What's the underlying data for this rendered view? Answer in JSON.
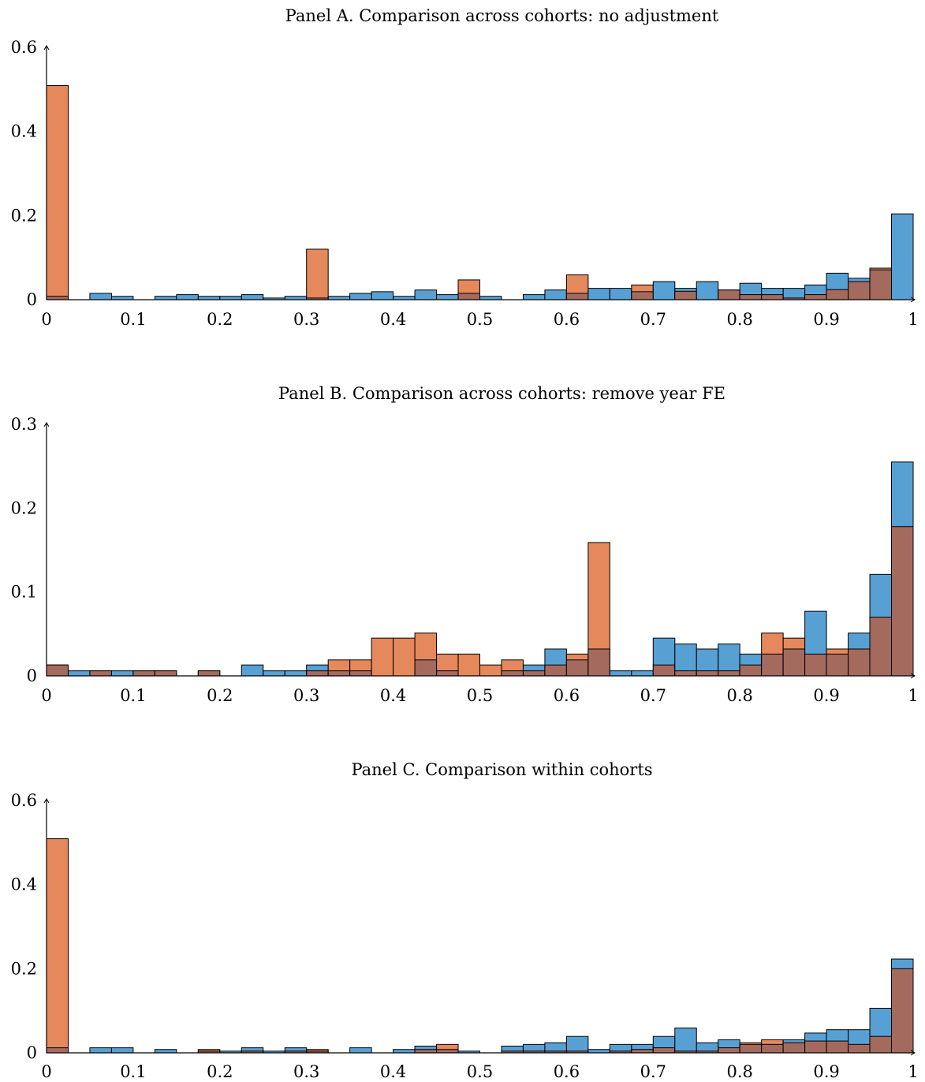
{
  "chart_data": [
    {
      "type": "bar",
      "title": "Panel A. Comparison across cohorts: no adjustment",
      "xlim": [
        0,
        1
      ],
      "ylim": [
        0,
        0.6
      ],
      "x_ticks": [
        "0",
        "0.1",
        "0.2",
        "0.3",
        "0.4",
        "0.5",
        "0.6",
        "0.7",
        "0.8",
        "0.9",
        "1"
      ],
      "y_ticks": [
        "0",
        "0.2",
        "0.4",
        "0.6"
      ],
      "bin_width": 0.025,
      "series": [
        {
          "color": "#E0733E",
          "values": [
            0.509,
            0,
            0,
            0,
            0,
            0,
            0,
            0,
            0,
            0,
            0,
            0,
            0.12,
            0,
            0,
            0,
            0,
            0,
            0,
            0.047,
            0,
            0,
            0,
            0,
            0.059,
            0,
            0,
            0.035,
            0,
            0.02,
            0,
            0.023,
            0.012,
            0.012,
            0.004,
            0.012,
            0.024,
            0.043,
            0.075,
            0
          ]
        },
        {
          "color": "#3A8FCC",
          "values": [
            0.008,
            0,
            0.015,
            0.008,
            0,
            0.008,
            0.012,
            0.008,
            0.008,
            0.012,
            0.004,
            0.008,
            0.004,
            0.008,
            0.015,
            0.019,
            0.008,
            0.023,
            0.012,
            0.015,
            0.008,
            0,
            0.012,
            0.023,
            0.015,
            0.027,
            0.027,
            0.019,
            0.043,
            0.027,
            0.043,
            0.023,
            0.039,
            0.027,
            0.027,
            0.035,
            0.063,
            0.051,
            0.071,
            0.204
          ]
        }
      ]
    },
    {
      "type": "bar",
      "title": "Panel B. Comparison across cohorts: remove year FE",
      "xlim": [
        0,
        1
      ],
      "ylim": [
        0,
        0.3
      ],
      "x_ticks": [
        "0",
        "0.1",
        "0.2",
        "0.3",
        "0.4",
        "0.5",
        "0.6",
        "0.7",
        "0.8",
        "0.9",
        "1"
      ],
      "y_ticks": [
        "0",
        "0.1",
        "0.2",
        "0.3"
      ],
      "bin_width": 0.025,
      "series": [
        {
          "color": "#E0733E",
          "values": [
            0.013,
            0,
            0.006,
            0,
            0.006,
            0.006,
            0,
            0.006,
            0,
            0,
            0,
            0,
            0.006,
            0.019,
            0.019,
            0.045,
            0.045,
            0.051,
            0.026,
            0.026,
            0.013,
            0.019,
            0.006,
            0.013,
            0.026,
            0.159,
            0,
            0,
            0.013,
            0.006,
            0.006,
            0.006,
            0.013,
            0.051,
            0.045,
            0.026,
            0.032,
            0.032,
            0.07,
            0.178
          ]
        },
        {
          "color": "#3A8FCC",
          "values": [
            0.013,
            0.006,
            0.006,
            0.006,
            0.006,
            0.006,
            0,
            0.006,
            0,
            0.013,
            0.006,
            0.006,
            0.013,
            0.006,
            0.006,
            0,
            0,
            0.019,
            0.006,
            0,
            0,
            0.006,
            0.013,
            0.032,
            0.019,
            0.032,
            0.006,
            0.006,
            0.045,
            0.038,
            0.032,
            0.038,
            0.026,
            0.026,
            0.032,
            0.077,
            0.026,
            0.051,
            0.121,
            0.255
          ]
        }
      ]
    },
    {
      "type": "bar",
      "title": "Panel C. Comparison within cohorts",
      "xlim": [
        0,
        1
      ],
      "ylim": [
        0,
        0.6
      ],
      "x_ticks": [
        "0",
        "0.1",
        "0.2",
        "0.3",
        "0.4",
        "0.5",
        "0.6",
        "0.7",
        "0.8",
        "0.9",
        "1"
      ],
      "y_ticks": [
        "0",
        "0.2",
        "0.4",
        "0.6"
      ],
      "bin_width": 0.025,
      "series": [
        {
          "color": "#E0733E",
          "values": [
            0.509,
            0,
            0,
            0,
            0,
            0,
            0,
            0.008,
            0,
            0.004,
            0,
            0.004,
            0.008,
            0,
            0,
            0,
            0,
            0.008,
            0.02,
            0,
            0,
            0.004,
            0.004,
            0.004,
            0.004,
            0,
            0.004,
            0.008,
            0.012,
            0.004,
            0.004,
            0.012,
            0.024,
            0.031,
            0.024,
            0.028,
            0.028,
            0.02,
            0.039,
            0.2
          ]
        },
        {
          "color": "#3A8FCC",
          "values": [
            0.012,
            0,
            0.012,
            0.012,
            0,
            0.008,
            0,
            0.004,
            0.004,
            0.012,
            0.004,
            0.012,
            0.004,
            0,
            0.012,
            0,
            0.008,
            0.016,
            0.008,
            0.004,
            0,
            0.016,
            0.02,
            0.024,
            0.039,
            0.008,
            0.02,
            0.02,
            0.039,
            0.059,
            0.024,
            0.031,
            0.02,
            0.02,
            0.031,
            0.047,
            0.055,
            0.055,
            0.106,
            0.223
          ]
        }
      ]
    }
  ]
}
